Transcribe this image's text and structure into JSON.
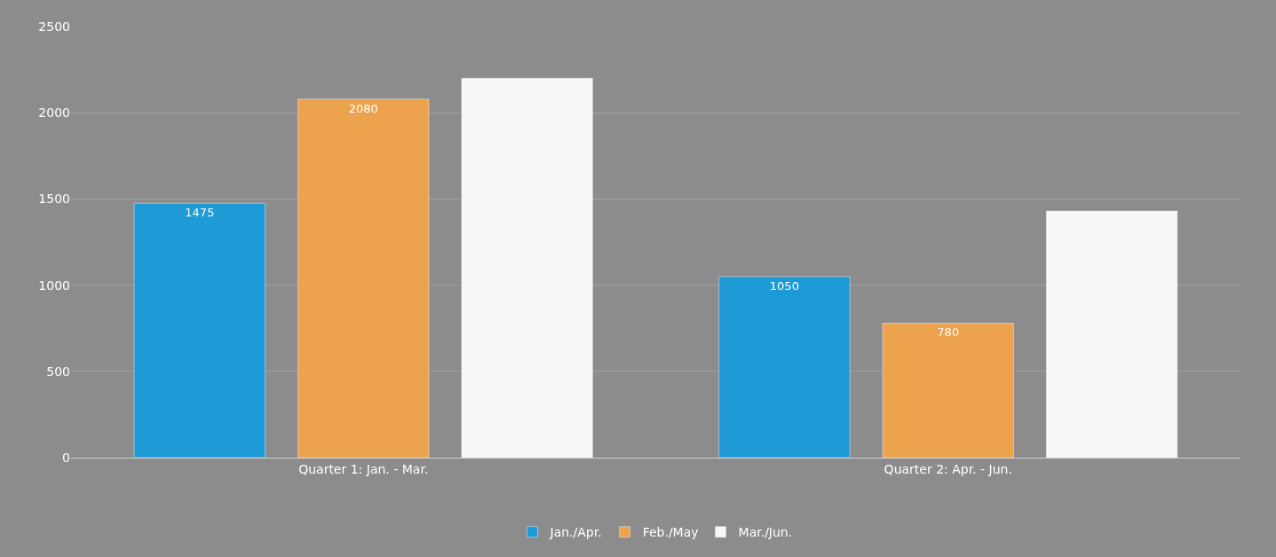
{
  "chart_data": {
    "type": "bar",
    "categories": [
      "Quarter 1: Jan. - Mar.",
      "Quarter 2: Apr. - Jun."
    ],
    "series": [
      {
        "name": "Jan./Apr.",
        "color": "#1e9ad6",
        "values": [
          1475,
          1050
        ],
        "value_labels": [
          "1475",
          "1050"
        ]
      },
      {
        "name": "Feb./May",
        "color": "#eda24e",
        "values": [
          2080,
          780
        ],
        "value_labels": [
          "2080",
          "780"
        ]
      },
      {
        "name": "Mar./Jun.",
        "color": "#f8f8f8",
        "values": [
          2200,
          1430
        ]
      }
    ],
    "ylim": [
      0,
      2500
    ],
    "yticks": [
      0,
      500,
      1000,
      1500,
      2000,
      2500
    ],
    "grid": "y",
    "legend": "bottom"
  }
}
